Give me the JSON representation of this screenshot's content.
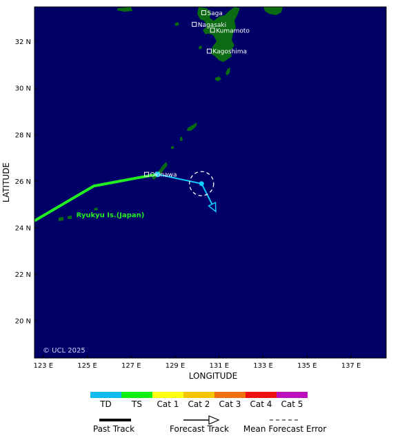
{
  "map": {
    "x_axis_title": "LONGITUDE",
    "y_axis_title": "LATITUDE",
    "lon_range": [
      122.6,
      138.6
    ],
    "lat_range": [
      18.4,
      33.5
    ],
    "lon_ticks": [
      {
        "value": 123,
        "label": "123 E"
      },
      {
        "value": 125,
        "label": "125 E"
      },
      {
        "value": 127,
        "label": "127 E"
      },
      {
        "value": 129,
        "label": "129 E"
      },
      {
        "value": 131,
        "label": "131 E"
      },
      {
        "value": 133,
        "label": "133 E"
      },
      {
        "value": 135,
        "label": "135 E"
      },
      {
        "value": 137,
        "label": "137 E"
      }
    ],
    "lat_ticks": [
      {
        "value": 20,
        "label": "20 N"
      },
      {
        "value": 22,
        "label": "22 N"
      },
      {
        "value": 24,
        "label": "24 N"
      },
      {
        "value": 26,
        "label": "26 N"
      },
      {
        "value": 28,
        "label": "28 N"
      },
      {
        "value": 30,
        "label": "30 N"
      },
      {
        "value": 32,
        "label": "32 N"
      }
    ],
    "ocean_color": "#000066",
    "land_color": "#0a6b12",
    "places": [
      {
        "name": "Saga",
        "lon": 130.3,
        "lat": 33.25
      },
      {
        "name": "Nagasaki",
        "lon": 129.87,
        "lat": 32.75
      },
      {
        "name": "Kumamoto",
        "lon": 130.7,
        "lat": 32.5
      },
      {
        "name": "Kagoshima",
        "lon": 130.55,
        "lat": 31.6
      },
      {
        "name": "Okinawa",
        "lon": 127.7,
        "lat": 26.3
      }
    ],
    "region_label": {
      "text": "Ryukyu Is.(Japan)",
      "color": "#22ee22",
      "lon": 124.5,
      "lat": 24.45
    },
    "copyright": "© UCL 2025"
  },
  "storm": {
    "past_track": {
      "category": "TS",
      "color": "#22ee22",
      "points": [
        {
          "lon": 122.6,
          "lat": 24.3
        },
        {
          "lon": 125.3,
          "lat": 25.8
        },
        {
          "lon": 127.3,
          "lat": 26.15
        },
        {
          "lon": 128.2,
          "lat": 26.3
        }
      ]
    },
    "forecast_track": {
      "category": "TD",
      "color": "#11ccff",
      "points": [
        {
          "lon": 128.2,
          "lat": 26.3
        },
        {
          "lon": 130.2,
          "lat": 25.9
        },
        {
          "lon": 130.85,
          "lat": 24.7
        }
      ]
    },
    "current_position": {
      "lon": 130.2,
      "lat": 25.9
    },
    "mean_forecast_error_radius_deg": 0.55
  },
  "legend": {
    "categories": [
      {
        "label": "TD",
        "color": "#11bbee"
      },
      {
        "label": "TS",
        "color": "#11ee11"
      },
      {
        "label": "Cat 1",
        "color": "#ffff11"
      },
      {
        "label": "Cat 2",
        "color": "#f5c400"
      },
      {
        "label": "Cat 3",
        "color": "#f07010"
      },
      {
        "label": "Cat 4",
        "color": "#ee1111"
      },
      {
        "label": "Cat 5",
        "color": "#bb11bb"
      }
    ],
    "past_track_label": "Past Track",
    "forecast_track_label": "Forecast Track",
    "mean_error_label": "Mean Forecast Error"
  }
}
